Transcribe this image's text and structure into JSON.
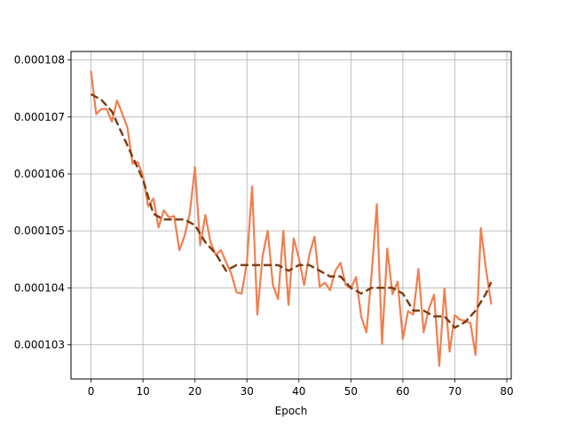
{
  "chart_data": {
    "type": "line",
    "title": "",
    "xlabel": "Epoch",
    "ylabel": "",
    "xlim": [
      -3.85,
      80.85
    ],
    "ylim": [
      0.0001024,
      0.00010815
    ],
    "grid": true,
    "xticks": [
      0,
      10,
      20,
      30,
      40,
      50,
      60,
      70,
      80
    ],
    "xtick_labels": [
      "0",
      "10",
      "20",
      "30",
      "40",
      "50",
      "60",
      "70",
      "80"
    ],
    "yticks": [
      0.000103,
      0.000104,
      0.000105,
      0.000106,
      0.000107,
      0.000108
    ],
    "ytick_labels": [
      "0.000103",
      "0.000104",
      "0.000105",
      "0.000106",
      "0.000107",
      "0.000108"
    ],
    "series": [
      {
        "style": "solid",
        "color": "#f07f50",
        "x": [
          0,
          1,
          2,
          3,
          4,
          5,
          6,
          7,
          8,
          9,
          10,
          11,
          12,
          13,
          14,
          15,
          16,
          17,
          18,
          19,
          20,
          21,
          22,
          23,
          24,
          25,
          26,
          27,
          28,
          29,
          30,
          31,
          32,
          33,
          34,
          35,
          36,
          37,
          38,
          39,
          40,
          41,
          42,
          43,
          44,
          45,
          46,
          47,
          48,
          49,
          50,
          51,
          52,
          53,
          54,
          55,
          56,
          57,
          58,
          59,
          60,
          61,
          62,
          63,
          64,
          65,
          66,
          67,
          68,
          69,
          70,
          71,
          72,
          73,
          74,
          75,
          76,
          77
        ],
        "y": [
          0.0001078,
          0.00010705,
          0.00010714,
          0.00010714,
          0.00010692,
          0.00010729,
          0.00010706,
          0.00010682,
          0.00010618,
          0.00010621,
          0.00010596,
          0.00010543,
          0.00010557,
          0.00010506,
          0.00010536,
          0.00010524,
          0.00010526,
          0.00010466,
          0.00010491,
          0.0001053,
          0.00010612,
          0.00010475,
          0.00010528,
          0.0001048,
          0.00010458,
          0.00010466,
          0.00010445,
          0.00010425,
          0.00010392,
          0.0001039,
          0.00010445,
          0.00010578,
          0.00010353,
          0.00010455,
          0.000105,
          0.00010405,
          0.0001038,
          0.000105,
          0.0001037,
          0.00010487,
          0.00010452,
          0.00010405,
          0.00010458,
          0.0001049,
          0.00010402,
          0.00010409,
          0.00010396,
          0.0001043,
          0.00010444,
          0.00010405,
          0.00010399,
          0.00010419,
          0.00010349,
          0.00010322,
          0.00010425,
          0.00010547,
          0.00010302,
          0.00010469,
          0.00010389,
          0.00010411,
          0.0001031,
          0.00010359,
          0.00010353,
          0.00010433,
          0.00010322,
          0.00010363,
          0.00010388,
          0.00010263,
          0.00010399,
          0.00010288,
          0.00010352,
          0.00010344,
          0.00010342,
          0.00010338,
          0.00010282,
          0.00010505,
          0.00010433,
          0.00010372
        ]
      },
      {
        "style": "dashed",
        "color": "#7a3a10",
        "x": [
          0,
          2,
          4,
          6,
          8,
          10,
          12,
          14,
          16,
          18,
          20,
          22,
          24,
          26,
          28,
          30,
          32,
          34,
          36,
          38,
          40,
          42,
          44,
          46,
          48,
          50,
          52,
          54,
          56,
          58,
          60,
          62,
          64,
          66,
          68,
          70,
          72,
          74,
          76,
          77
        ],
        "y": [
          0.0001074,
          0.0001073,
          0.0001071,
          0.0001067,
          0.0001063,
          0.0001059,
          0.0001053,
          0.0001052,
          0.0001052,
          0.0001052,
          0.0001051,
          0.0001048,
          0.0001046,
          0.0001043,
          0.0001044,
          0.0001044,
          0.0001044,
          0.0001044,
          0.0001044,
          0.0001043,
          0.0001044,
          0.0001044,
          0.0001043,
          0.0001042,
          0.0001042,
          0.000104,
          0.0001039,
          0.000104,
          0.000104,
          0.000104,
          0.0001039,
          0.0001036,
          0.0001036,
          0.0001035,
          0.0001035,
          0.0001033,
          0.0001034,
          0.0001036,
          0.0001039,
          0.0001041
        ]
      }
    ]
  }
}
